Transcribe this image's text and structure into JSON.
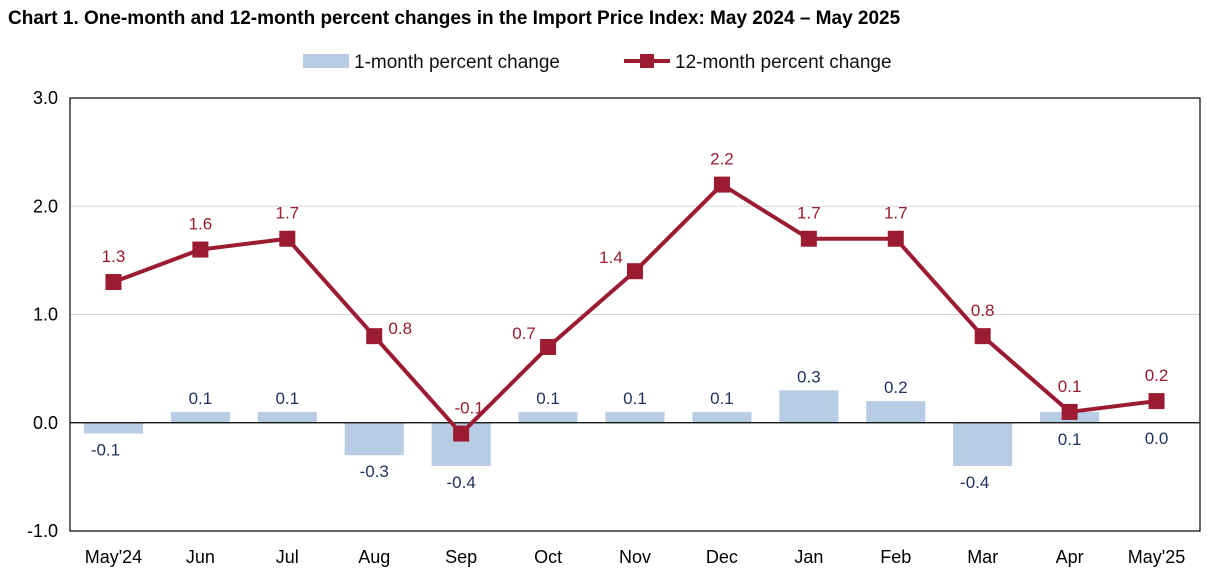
{
  "chart_data": {
    "type": "bar+line",
    "title": "Chart 1. One-month and 12-month percent changes in the Import Price Index: May 2024 – May 2025",
    "categories": [
      "May'24",
      "Jun",
      "Jul",
      "Aug",
      "Sep",
      "Oct",
      "Nov",
      "Dec",
      "Jan",
      "Feb",
      "Mar",
      "Apr",
      "May'25"
    ],
    "series": [
      {
        "name": "1-month percent change",
        "type": "bar",
        "color": "#b8cce4",
        "values": [
          -0.1,
          0.1,
          0.1,
          -0.3,
          -0.4,
          0.1,
          0.1,
          0.1,
          0.3,
          0.2,
          -0.4,
          0.1,
          0.0
        ],
        "labels": [
          "-0.1",
          "0.1",
          "0.1",
          "-0.3",
          "-0.4",
          "0.1",
          "0.1",
          "0.1",
          "0.3",
          "0.2",
          "-0.4",
          "0.1",
          "0.0"
        ]
      },
      {
        "name": "12-month percent change",
        "type": "line",
        "color": "#9b1b30",
        "values": [
          1.3,
          1.6,
          1.7,
          0.8,
          -0.1,
          0.7,
          1.4,
          2.2,
          1.7,
          1.7,
          0.8,
          0.1,
          0.2
        ],
        "labels": [
          "1.3",
          "1.6",
          "1.7",
          "0.8",
          "-0.1",
          "0.7",
          "1.4",
          "2.2",
          "1.7",
          "1.7",
          "0.8",
          "0.1",
          "0.2"
        ]
      }
    ],
    "ylim": [
      -1.0,
      3.0
    ],
    "yticks": [
      -1.0,
      0.0,
      1.0,
      2.0,
      3.0
    ],
    "ytick_labels": [
      "-1.0",
      "0.0",
      "1.0",
      "2.0",
      "3.0"
    ],
    "xlabel": "",
    "ylabel": "",
    "grid": true,
    "legend_position": "top-center"
  }
}
